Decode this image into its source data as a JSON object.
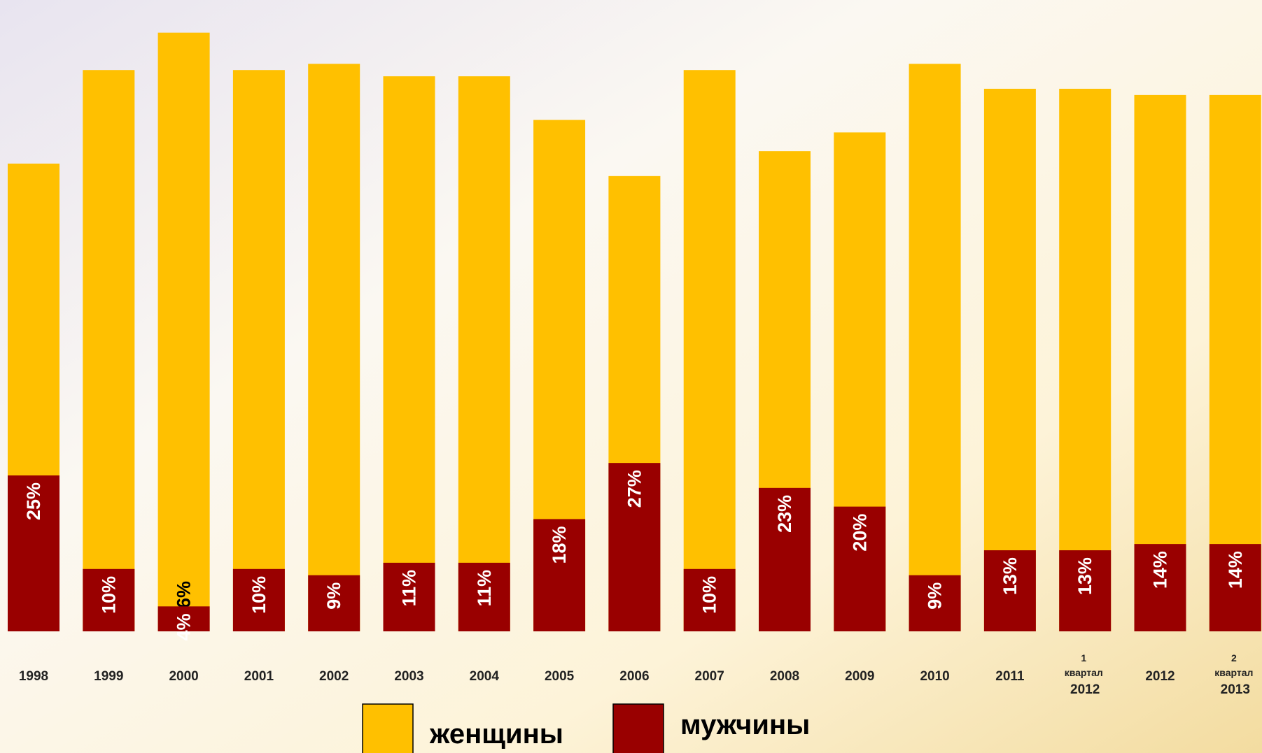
{
  "chart_data": {
    "type": "stacked_bar",
    "categories": [
      "1998",
      "1999",
      "2000",
      "2001",
      "2002",
      "2003",
      "2004",
      "2005",
      "2006",
      "2007",
      "2008",
      "2009",
      "2010",
      "2011",
      "1 квартал 2012",
      "2012",
      "2 квартал 2013"
    ],
    "ylim": [
      0,
      100
    ],
    "series": [
      {
        "name": "женщины",
        "color": "#FFC000",
        "values": [
          75,
          90,
          96,
          90,
          91,
          89,
          89,
          82,
          73,
          90,
          77,
          80,
          91,
          87,
          87,
          86,
          86
        ],
        "value_labels": [
          "75%",
          "90%",
          "96%",
          "90%",
          "91%",
          "89%",
          "89%",
          "82%",
          "73%",
          "90%",
          "77%",
          "80%",
          "91%",
          "87%",
          "87%",
          "86%",
          "86%"
        ]
      },
      {
        "name": "мужчины",
        "color": "#990000",
        "values": [
          25,
          10,
          4,
          10,
          9,
          11,
          11,
          18,
          27,
          10,
          23,
          20,
          9,
          13,
          13,
          14,
          14
        ],
        "value_labels": [
          "25%",
          "10%",
          "4%",
          "10%",
          "9%",
          "11%",
          "11%",
          "18%",
          "27%",
          "10%",
          "23%",
          "20%",
          "9%",
          "13%",
          "13%",
          "14%",
          "14%"
        ]
      }
    ]
  }
}
